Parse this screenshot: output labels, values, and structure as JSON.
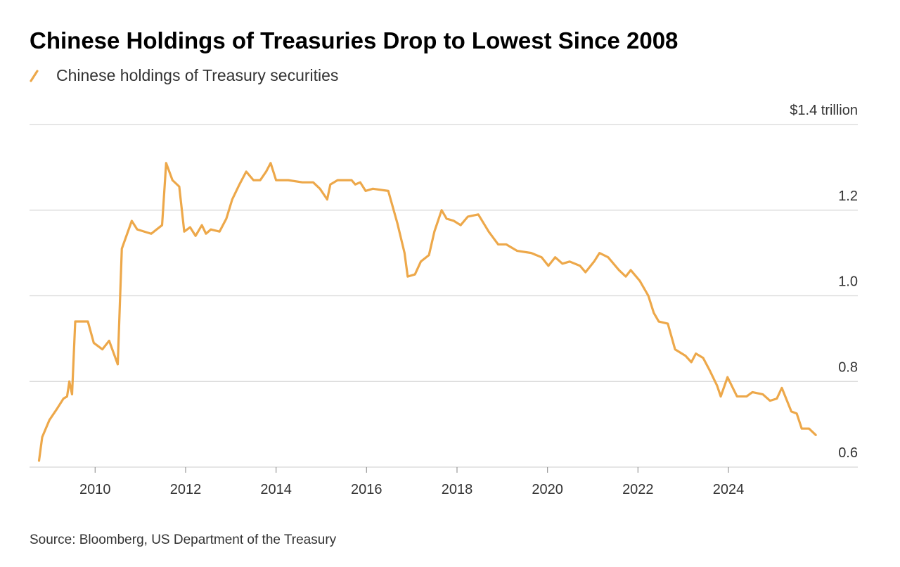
{
  "chart_data": {
    "type": "line",
    "title": "Chinese Holdings of Treasuries Drop to Lowest Since 2008",
    "source": "Source: Bloomberg, US Department of the Treasury",
    "x": [
      2008.76,
      2008.83,
      2008.99,
      2009.15,
      2009.3,
      2009.38,
      2009.43,
      2009.49,
      2009.56,
      2009.84,
      2009.97,
      2010.16,
      2010.31,
      2010.5,
      2010.59,
      2010.81,
      2010.93,
      2011.24,
      2011.48,
      2011.57,
      2011.71,
      2011.86,
      2011.97,
      2012.1,
      2012.22,
      2012.36,
      2012.45,
      2012.56,
      2012.75,
      2012.9,
      2013.03,
      2013.19,
      2013.34,
      2013.5,
      2013.65,
      2013.78,
      2013.88,
      2014.0,
      2014.27,
      2014.58,
      2014.82,
      2014.97,
      2015.13,
      2015.2,
      2015.36,
      2015.67,
      2015.75,
      2015.86,
      2015.98,
      2016.14,
      2016.48,
      2016.68,
      2016.84,
      2016.91,
      2017.07,
      2017.2,
      2017.38,
      2017.5,
      2017.66,
      2017.77,
      2017.93,
      2018.08,
      2018.24,
      2018.47,
      2018.7,
      2018.91,
      2019.09,
      2019.33,
      2019.64,
      2019.87,
      2020.02,
      2020.17,
      2020.33,
      2020.49,
      2020.72,
      2020.84,
      2021.03,
      2021.15,
      2021.34,
      2021.58,
      2021.73,
      2021.84,
      2022.04,
      2022.23,
      2022.35,
      2022.46,
      2022.66,
      2022.82,
      2023.05,
      2023.18,
      2023.28,
      2023.44,
      2023.59,
      2023.75,
      2023.83,
      2023.98,
      2024.19,
      2024.4,
      2024.53,
      2024.76,
      2024.92,
      2025.07,
      2025.18,
      2025.39,
      2025.51,
      2025.62,
      2025.78,
      2025.93
    ],
    "series": [
      {
        "name": "Chinese holdings of Treasury securities",
        "color": "#eda84a",
        "values": [
          0.615,
          0.67,
          0.71,
          0.735,
          0.76,
          0.765,
          0.8,
          0.77,
          0.94,
          0.94,
          0.89,
          0.875,
          0.895,
          0.84,
          1.11,
          1.175,
          1.155,
          1.145,
          1.165,
          1.31,
          1.27,
          1.255,
          1.15,
          1.16,
          1.14,
          1.165,
          1.145,
          1.155,
          1.15,
          1.18,
          1.225,
          1.26,
          1.29,
          1.27,
          1.27,
          1.29,
          1.31,
          1.27,
          1.27,
          1.265,
          1.265,
          1.25,
          1.225,
          1.26,
          1.27,
          1.27,
          1.26,
          1.265,
          1.245,
          1.25,
          1.245,
          1.17,
          1.1,
          1.045,
          1.05,
          1.08,
          1.095,
          1.15,
          1.2,
          1.18,
          1.175,
          1.165,
          1.185,
          1.19,
          1.15,
          1.12,
          1.12,
          1.105,
          1.1,
          1.09,
          1.07,
          1.09,
          1.075,
          1.08,
          1.07,
          1.055,
          1.08,
          1.1,
          1.09,
          1.06,
          1.045,
          1.06,
          1.035,
          1.0,
          0.96,
          0.94,
          0.935,
          0.875,
          0.86,
          0.845,
          0.865,
          0.855,
          0.825,
          0.79,
          0.765,
          0.81,
          0.765,
          0.765,
          0.775,
          0.77,
          0.755,
          0.76,
          0.785,
          0.73,
          0.725,
          0.69,
          0.69,
          0.675
        ]
      }
    ],
    "xlim": [
      2008.55,
      2026.86
    ],
    "xticks": [
      2010,
      2012,
      2014,
      2016,
      2018,
      2020,
      2022,
      2024
    ],
    "ylim": [
      0.6,
      1.4
    ],
    "yticks": [
      0.6,
      0.8,
      {
        "value": 1,
        "label": "1.0"
      },
      1.2,
      {
        "value": 1.4,
        "label": "$1.4 trillion"
      }
    ],
    "grid": true
  }
}
